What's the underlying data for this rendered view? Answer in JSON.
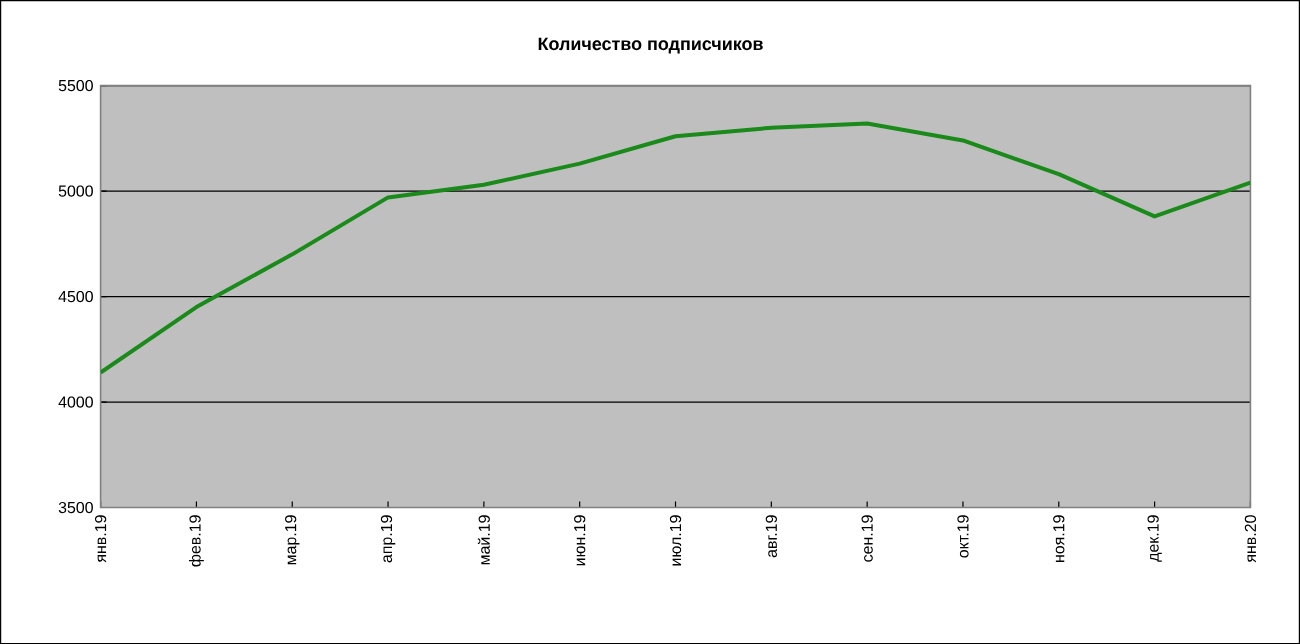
{
  "chart_data": {
    "type": "line",
    "title": "Количество подписчиков",
    "categories": [
      "янв.19",
      "фев.19",
      "мар.19",
      "апр.19",
      "май.19",
      "июн.19",
      "июл.19",
      "авг.19",
      "сен.19",
      "окт.19",
      "ноя.19",
      "дек.19",
      "янв.20"
    ],
    "series": [
      {
        "color": "#1a8a1a",
        "values": [
          4140,
          4450,
          4700,
          4970,
          5030,
          5130,
          5260,
          5300,
          5320,
          5240,
          5080,
          4880,
          5040
        ]
      }
    ],
    "ylim": [
      3500,
      5500
    ],
    "yticks": [
      3500,
      4000,
      4500,
      5000,
      5500
    ],
    "grid": "y",
    "marker": "none",
    "line_style": "solid"
  }
}
